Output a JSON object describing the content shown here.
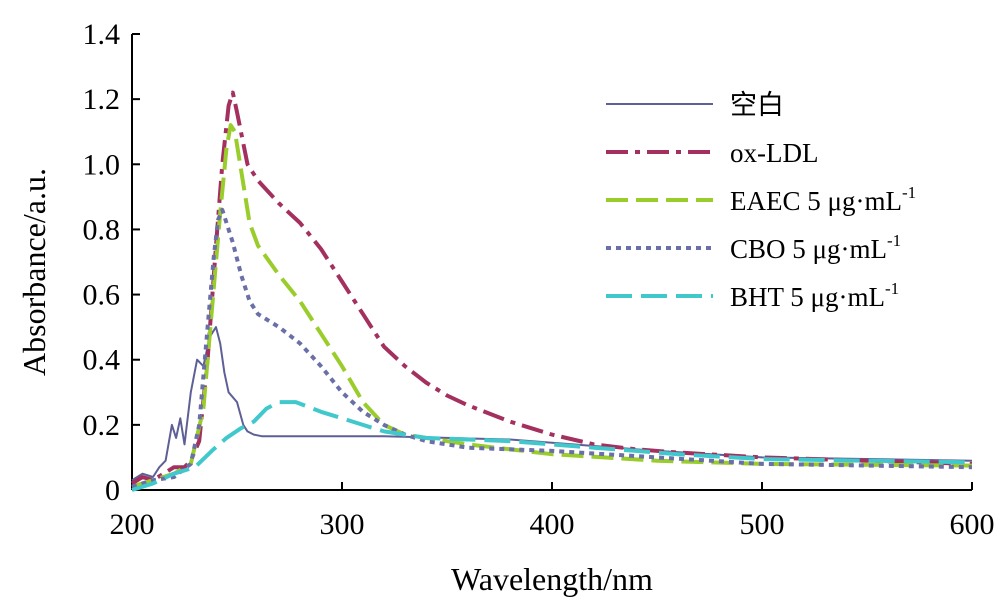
{
  "chart_data": {
    "type": "line",
    "xlabel": "Wavelength/nm",
    "ylabel": "Absorbance/a.u.",
    "xlim": [
      200,
      600
    ],
    "ylim": [
      0,
      1.4
    ],
    "x_ticks": [
      "200",
      "300",
      "400",
      "500",
      "600"
    ],
    "y_ticks": [
      "0",
      "0.2",
      "0.4",
      "0.6",
      "0.8",
      "1.0",
      "1.2",
      "1.4"
    ],
    "grid": false,
    "legend_position": "top-right",
    "series": [
      {
        "name": "空白",
        "sup": "",
        "color": "#5e5f96",
        "style": "solid",
        "points": [
          [
            200,
            0.03
          ],
          [
            205,
            0.05
          ],
          [
            210,
            0.04
          ],
          [
            213,
            0.07
          ],
          [
            216,
            0.09
          ],
          [
            219,
            0.2
          ],
          [
            221,
            0.16
          ],
          [
            223,
            0.22
          ],
          [
            225,
            0.14
          ],
          [
            228,
            0.3
          ],
          [
            231,
            0.4
          ],
          [
            234,
            0.38
          ],
          [
            237,
            0.47
          ],
          [
            240,
            0.5
          ],
          [
            242,
            0.45
          ],
          [
            244,
            0.36
          ],
          [
            246,
            0.3
          ],
          [
            250,
            0.27
          ],
          [
            253,
            0.2
          ],
          [
            255,
            0.18
          ],
          [
            258,
            0.17
          ],
          [
            262,
            0.165
          ],
          [
            280,
            0.165
          ],
          [
            320,
            0.165
          ],
          [
            380,
            0.155
          ],
          [
            450,
            0.12
          ],
          [
            500,
            0.1
          ],
          [
            600,
            0.09
          ]
        ]
      },
      {
        "name": "ox-LDL",
        "sup": "",
        "color": "#a3305f",
        "style": "dashdot",
        "points": [
          [
            200,
            0.02
          ],
          [
            205,
            0.04
          ],
          [
            210,
            0.03
          ],
          [
            215,
            0.05
          ],
          [
            220,
            0.07
          ],
          [
            225,
            0.07
          ],
          [
            228,
            0.09
          ],
          [
            232,
            0.15
          ],
          [
            236,
            0.4
          ],
          [
            240,
            0.75
          ],
          [
            243,
            1.0
          ],
          [
            246,
            1.18
          ],
          [
            248,
            1.22
          ],
          [
            250,
            1.16
          ],
          [
            255,
            1.0
          ],
          [
            260,
            0.95
          ],
          [
            270,
            0.88
          ],
          [
            280,
            0.82
          ],
          [
            290,
            0.74
          ],
          [
            300,
            0.64
          ],
          [
            310,
            0.54
          ],
          [
            320,
            0.44
          ],
          [
            330,
            0.38
          ],
          [
            340,
            0.33
          ],
          [
            350,
            0.29
          ],
          [
            360,
            0.26
          ],
          [
            380,
            0.21
          ],
          [
            400,
            0.17
          ],
          [
            420,
            0.14
          ],
          [
            440,
            0.125
          ],
          [
            460,
            0.115
          ],
          [
            500,
            0.1
          ],
          [
            550,
            0.09
          ],
          [
            600,
            0.08
          ]
        ]
      },
      {
        "name": "EAEC 5 μg·mL",
        "sup": "-1",
        "color": "#9acd2c",
        "style": "dashed",
        "points": [
          [
            200,
            0.01
          ],
          [
            210,
            0.03
          ],
          [
            220,
            0.05
          ],
          [
            228,
            0.08
          ],
          [
            234,
            0.25
          ],
          [
            238,
            0.55
          ],
          [
            242,
            0.85
          ],
          [
            245,
            1.05
          ],
          [
            247,
            1.12
          ],
          [
            249,
            1.1
          ],
          [
            252,
            0.98
          ],
          [
            256,
            0.82
          ],
          [
            260,
            0.75
          ],
          [
            270,
            0.66
          ],
          [
            280,
            0.58
          ],
          [
            290,
            0.48
          ],
          [
            300,
            0.38
          ],
          [
            310,
            0.27
          ],
          [
            320,
            0.2
          ],
          [
            330,
            0.17
          ],
          [
            340,
            0.16
          ],
          [
            360,
            0.14
          ],
          [
            400,
            0.11
          ],
          [
            450,
            0.09
          ],
          [
            500,
            0.08
          ],
          [
            600,
            0.075
          ]
        ]
      },
      {
        "name": "CBO 5 μg·mL",
        "sup": "-1",
        "color": "#6a6fa8",
        "style": "dotted",
        "points": [
          [
            200,
            0.01
          ],
          [
            210,
            0.03
          ],
          [
            220,
            0.04
          ],
          [
            228,
            0.08
          ],
          [
            232,
            0.2
          ],
          [
            236,
            0.5
          ],
          [
            239,
            0.72
          ],
          [
            241,
            0.83
          ],
          [
            243,
            0.86
          ],
          [
            245,
            0.82
          ],
          [
            248,
            0.76
          ],
          [
            252,
            0.66
          ],
          [
            256,
            0.58
          ],
          [
            260,
            0.54
          ],
          [
            265,
            0.52
          ],
          [
            270,
            0.5
          ],
          [
            280,
            0.45
          ],
          [
            290,
            0.38
          ],
          [
            300,
            0.3
          ],
          [
            310,
            0.24
          ],
          [
            320,
            0.2
          ],
          [
            330,
            0.17
          ],
          [
            340,
            0.15
          ],
          [
            360,
            0.13
          ],
          [
            400,
            0.12
          ],
          [
            450,
            0.1
          ],
          [
            500,
            0.08
          ],
          [
            600,
            0.07
          ]
        ]
      },
      {
        "name": "BHT 5 μg·mL",
        "sup": "-1",
        "color": "#40c8cc",
        "style": "longdash",
        "points": [
          [
            200,
            0.0
          ],
          [
            210,
            0.02
          ],
          [
            220,
            0.05
          ],
          [
            230,
            0.07
          ],
          [
            238,
            0.12
          ],
          [
            245,
            0.16
          ],
          [
            252,
            0.19
          ],
          [
            258,
            0.21
          ],
          [
            264,
            0.25
          ],
          [
            270,
            0.27
          ],
          [
            278,
            0.27
          ],
          [
            290,
            0.24
          ],
          [
            300,
            0.22
          ],
          [
            310,
            0.2
          ],
          [
            320,
            0.18
          ],
          [
            340,
            0.16
          ],
          [
            360,
            0.155
          ],
          [
            380,
            0.15
          ],
          [
            400,
            0.14
          ],
          [
            420,
            0.13
          ],
          [
            440,
            0.12
          ],
          [
            460,
            0.11
          ],
          [
            500,
            0.095
          ],
          [
            550,
            0.09
          ],
          [
            600,
            0.085
          ]
        ]
      }
    ]
  }
}
